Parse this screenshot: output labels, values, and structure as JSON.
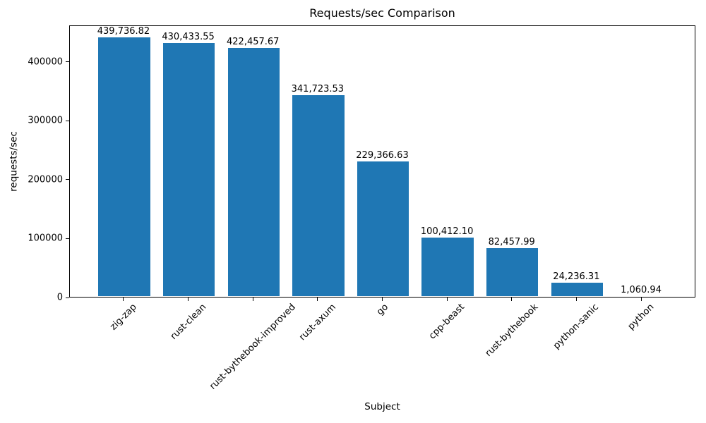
{
  "chart_data": {
    "type": "bar",
    "title": "Requests/sec Comparison",
    "xlabel": "Subject",
    "ylabel": "requests/sec",
    "categories": [
      "zig-zap",
      "rust-clean",
      "rust-bythebook-improved",
      "rust-axum",
      "go",
      "cpp-beast",
      "rust-bythebook",
      "python-sanic",
      "python"
    ],
    "values": [
      439736.82,
      430433.55,
      422457.67,
      341723.53,
      229366.63,
      100412.1,
      82457.99,
      24236.31,
      1060.94
    ],
    "value_labels": [
      "439,736.82",
      "430,433.55",
      "422,457.67",
      "341,723.53",
      "229,366.63",
      "100,412.10",
      "82,457.99",
      "24,236.31",
      "1,060.94"
    ],
    "yticks": [
      0,
      100000,
      200000,
      300000,
      400000
    ],
    "ytick_labels": [
      "0",
      "100000",
      "200000",
      "300000",
      "400000"
    ],
    "ylim": [
      0,
      461724
    ],
    "bar_color": "#1f77b4",
    "grid": false,
    "legend": null,
    "x_tick_rotation_deg": 45
  }
}
